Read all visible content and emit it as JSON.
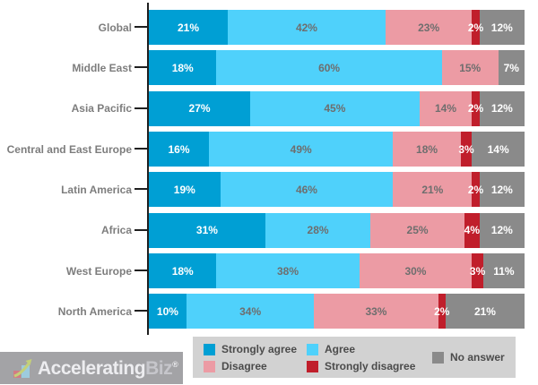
{
  "chart_data": {
    "type": "bar",
    "variant": "horizontal-stacked",
    "title": "",
    "xlabel": "",
    "ylabel": "",
    "xlim": [
      0,
      100
    ],
    "value_suffix": "%",
    "grid": false,
    "legend_position": "bottom",
    "categories": [
      "Global",
      "Middle East",
      "Asia Pacific",
      "Central and East Europe",
      "Latin America",
      "Africa",
      "West Europe",
      "North America"
    ],
    "series": [
      {
        "name": "Strongly agree",
        "color": "#009FD4",
        "label_color": "#ffffff",
        "values": [
          21,
          18,
          27,
          16,
          19,
          31,
          18,
          10
        ]
      },
      {
        "name": "Agree",
        "color": "#4FD1FB",
        "label_color": "#6E6E6E",
        "values": [
          42,
          60,
          45,
          49,
          46,
          28,
          38,
          34
        ]
      },
      {
        "name": "Disagree",
        "color": "#EC9BA4",
        "label_color": "#6E6E6E",
        "values": [
          23,
          15,
          14,
          18,
          21,
          25,
          30,
          33
        ]
      },
      {
        "name": "Strongly disagree",
        "color": "#C01E2B",
        "label_color": "#ffffff",
        "values": [
          2,
          0,
          2,
          3,
          2,
          4,
          3,
          2
        ]
      },
      {
        "name": "No answer",
        "color": "#8A8A8A",
        "label_color": "#ffffff",
        "values": [
          12,
          7,
          12,
          14,
          12,
          12,
          11,
          21
        ]
      }
    ]
  },
  "legend": {
    "background": "#D2D2D2",
    "text_color": "#4B4B4B"
  },
  "branding": {
    "logo_text_primary": "Accelerating",
    "logo_text_secondary": "Biz",
    "registered_mark": "®"
  }
}
